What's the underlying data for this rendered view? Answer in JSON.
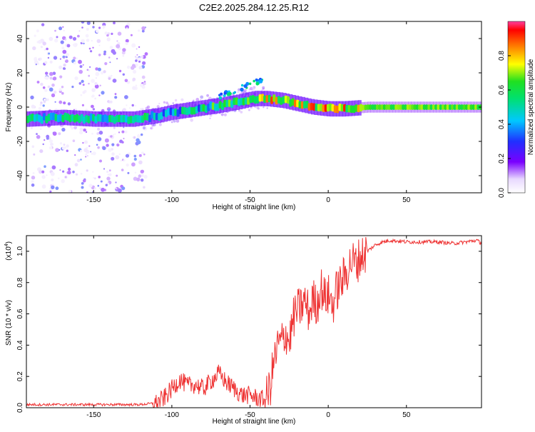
{
  "page_title": "C2E2.2025.284.12.25.R12",
  "colors": {
    "snr_line": "#ee3333",
    "spectral_line": "#22cc55",
    "axis": "#000000"
  },
  "chart_data": [
    {
      "type": "heatmap",
      "name": "spectrogram",
      "title": "C2E2.2025.284.12.25.R12",
      "xlabel": "Height of straight line (km)",
      "ylabel": "Frequency (Hz)",
      "xlim": [
        -193,
        98
      ],
      "ylim": [
        -50,
        50
      ],
      "x_ticks": [
        -150,
        -100,
        -50,
        0,
        50
      ],
      "y_ticks": [
        -40,
        -20,
        0,
        20,
        40
      ],
      "ridge": {
        "x": [
          -193,
          -170,
          -150,
          -125,
          -110,
          -100,
          -85,
          -70,
          -58,
          -48,
          -40,
          -30,
          -20,
          -10,
          0,
          10,
          25,
          50,
          98
        ],
        "y": [
          -7,
          -6,
          -7,
          -7,
          -5,
          -3,
          -1,
          1,
          3,
          5,
          5,
          4,
          2,
          0,
          -1,
          -1,
          0,
          0,
          0
        ]
      },
      "colorbar": {
        "label": "Normalized spectral amplitude",
        "range": [
          0.0,
          1.0
        ],
        "ticks": [
          0.0,
          0.2,
          0.4,
          0.6,
          0.8
        ],
        "tick_labels": [
          "0.0",
          "0.2",
          "0.4",
          "0.6",
          "0.8"
        ]
      }
    },
    {
      "type": "line",
      "name": "snr",
      "xlabel": "Height of straight line (km)",
      "ylabel": "SNR (10 * v/v)",
      "y_scale_label": "(x10",
      "y_scale_exponent": "4",
      "y_scale_suffix": ")",
      "xlim": [
        -193,
        98
      ],
      "ylim": [
        0.0,
        1.1
      ],
      "x_ticks": [
        -150,
        -100,
        -50,
        0,
        50
      ],
      "y_ticks": [
        0.0,
        0.2,
        0.4,
        0.6,
        0.8,
        1.0
      ],
      "y_tick_labels": [
        "0.0",
        "0.2",
        "0.4",
        "0.6",
        "0.8",
        "1.0"
      ],
      "series": [
        {
          "name": "SNR",
          "x": [
            -193,
            -180,
            -160,
            -140,
            -120,
            -110,
            -105,
            -100,
            -95,
            -90,
            -85,
            -80,
            -75,
            -70,
            -65,
            -60,
            -55,
            -50,
            -45,
            -40,
            -37,
            -35,
            -32,
            -30,
            -27,
            -25,
            -22,
            -20,
            -17,
            -15,
            -12,
            -10,
            -7,
            -5,
            -2,
            0,
            3,
            5,
            8,
            10,
            13,
            15,
            18,
            20,
            25,
            30,
            35,
            40,
            50,
            60,
            70,
            80,
            88,
            95,
            98
          ],
          "values": [
            0.02,
            0.02,
            0.02,
            0.02,
            0.02,
            0.03,
            0.06,
            0.12,
            0.18,
            0.14,
            0.15,
            0.12,
            0.17,
            0.22,
            0.16,
            0.12,
            0.08,
            0.08,
            0.06,
            0.05,
            0.14,
            0.28,
            0.4,
            0.42,
            0.48,
            0.42,
            0.58,
            0.62,
            0.65,
            0.68,
            0.6,
            0.7,
            0.65,
            0.78,
            0.7,
            0.72,
            0.66,
            0.74,
            0.8,
            0.83,
            0.9,
            0.94,
            0.92,
            0.96,
            1.0,
            1.04,
            1.06,
            1.07,
            1.06,
            1.06,
            1.06,
            1.05,
            1.06,
            1.07,
            1.05
          ]
        }
      ]
    }
  ]
}
